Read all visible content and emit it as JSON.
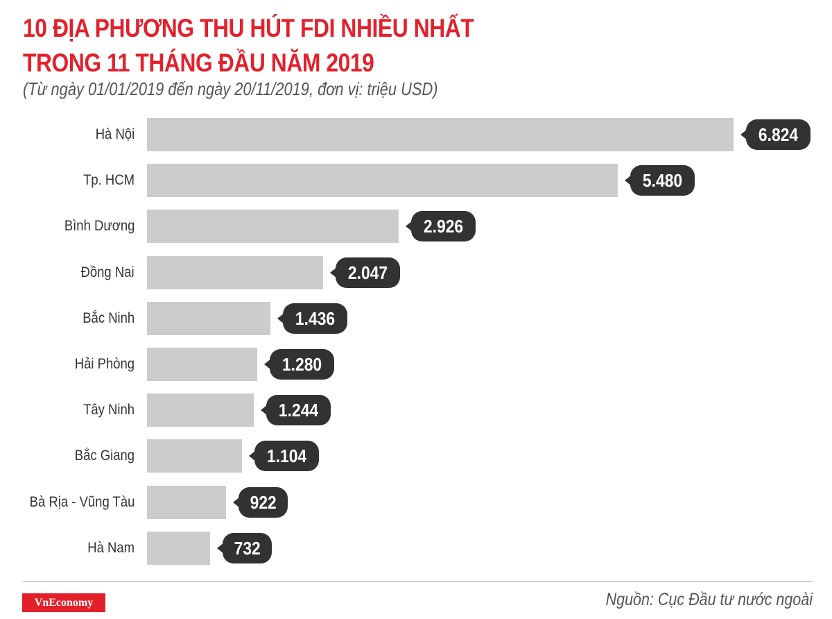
{
  "header": {
    "title_line1": "10 ĐỊA PHƯƠNG THU HÚT FDI NHIỀU NHẤT",
    "title_line2": "TRONG 11 THÁNG ĐẦU NĂM 2019",
    "subtitle": "(Từ ngày 01/01/2019 đến ngày 20/11/2019, đơn vị: triệu USD)"
  },
  "colors": {
    "title": "#e4202d",
    "bar": "#cdcccd",
    "bubble": "#323232",
    "logo_bg": "#e3202a"
  },
  "chart_data": {
    "type": "bar",
    "orientation": "horizontal",
    "title": "10 ĐỊA PHƯƠNG THU HÚT FDI NHIỀU NHẤT TRONG 11 THÁNG ĐẦU NĂM 2019",
    "subtitle": "(Từ ngày 01/01/2019 đến ngày 20/11/2019, đơn vị: triệu USD)",
    "xlabel": "",
    "ylabel": "",
    "unit": "triệu USD",
    "grid": false,
    "legend": null,
    "categories": [
      "Hà Nội",
      "Tp. HCM",
      "Bình Dương",
      "Đồng Nai",
      "Bắc Ninh",
      "Hải Phòng",
      "Tây Ninh",
      "Bắc Giang",
      "Bà Rịa - Vũng Tàu",
      "Hà Nam"
    ],
    "values": [
      6824,
      5480,
      2926,
      2047,
      1436,
      1280,
      1244,
      1104,
      922,
      732
    ],
    "value_labels": [
      "6.824",
      "5.480",
      "2.926",
      "2.047",
      "1.436",
      "1.280",
      "1.244",
      "1.104",
      "922",
      "732"
    ],
    "xlim": [
      0,
      6824
    ]
  },
  "footer": {
    "logo": "VnEconomy",
    "source": "Nguồn: Cục Đầu tư nước ngoài"
  }
}
